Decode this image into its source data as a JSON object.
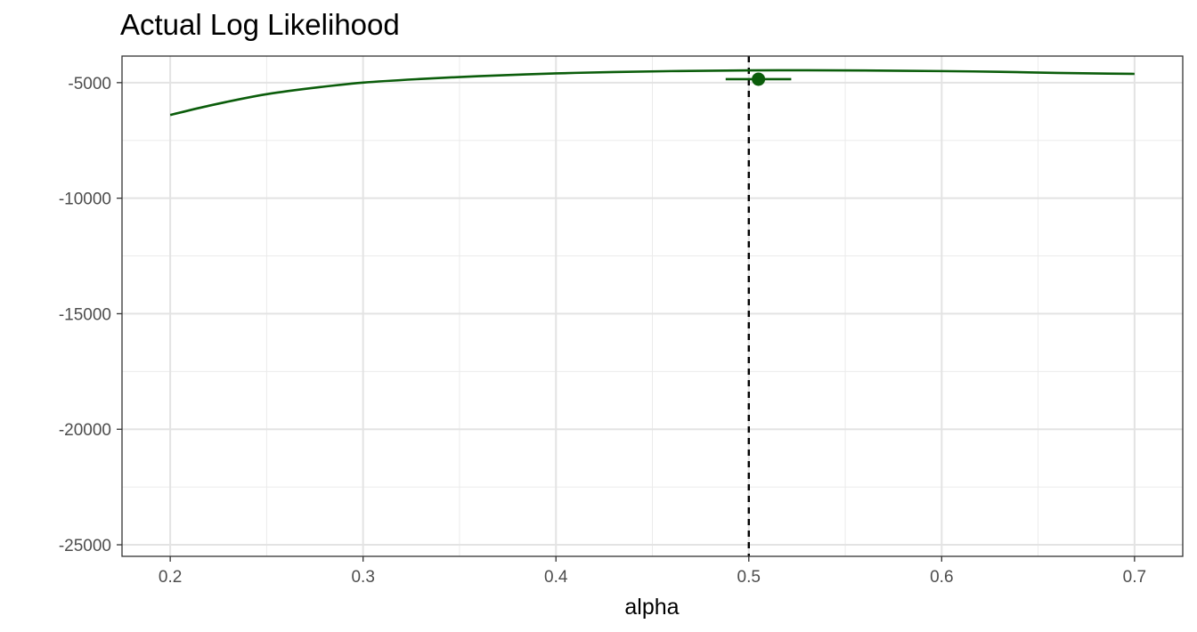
{
  "chart_data": {
    "type": "line",
    "title": "Actual Log Likelihood",
    "xlabel": "alpha",
    "ylabel": "",
    "xlim": [
      0.175,
      0.725
    ],
    "ylim": [
      -25500,
      -3850
    ],
    "x_ticks": [
      0.2,
      0.3,
      0.4,
      0.5,
      0.6,
      0.7
    ],
    "x_tick_labels": [
      "0.2",
      "0.3",
      "0.4",
      "0.5",
      "0.6",
      "0.7"
    ],
    "y_ticks": [
      -5000,
      -10000,
      -15000,
      -20000,
      -25000
    ],
    "y_tick_labels": [
      "-5000",
      "-10000",
      "-15000",
      "-20000",
      "-25000"
    ],
    "x_minor_ticks": [
      0.25,
      0.35,
      0.45,
      0.55,
      0.65
    ],
    "y_minor_ticks": [
      -7500,
      -12500,
      -17500,
      -22500
    ],
    "grid": true,
    "legend": "none",
    "series": [
      {
        "color": "#0b5d0b",
        "x": [
          0.2,
          0.22,
          0.25,
          0.28,
          0.3,
          0.33,
          0.36,
          0.4,
          0.43,
          0.46,
          0.5,
          0.53,
          0.56,
          0.6,
          0.63,
          0.66,
          0.7
        ],
        "y": [
          -6400,
          -6000,
          -5500,
          -5170,
          -5000,
          -4840,
          -4720,
          -4600,
          -4540,
          -4500,
          -4470,
          -4465,
          -4475,
          -4500,
          -4530,
          -4580,
          -4620
        ]
      }
    ],
    "point_estimate": {
      "x": 0.505,
      "y": -4850,
      "xmin": 0.488,
      "xmax": 0.522,
      "color": "#0b5d0b"
    },
    "reference_line": {
      "x": 0.5,
      "style": "dashed",
      "color": "#000000"
    }
  }
}
